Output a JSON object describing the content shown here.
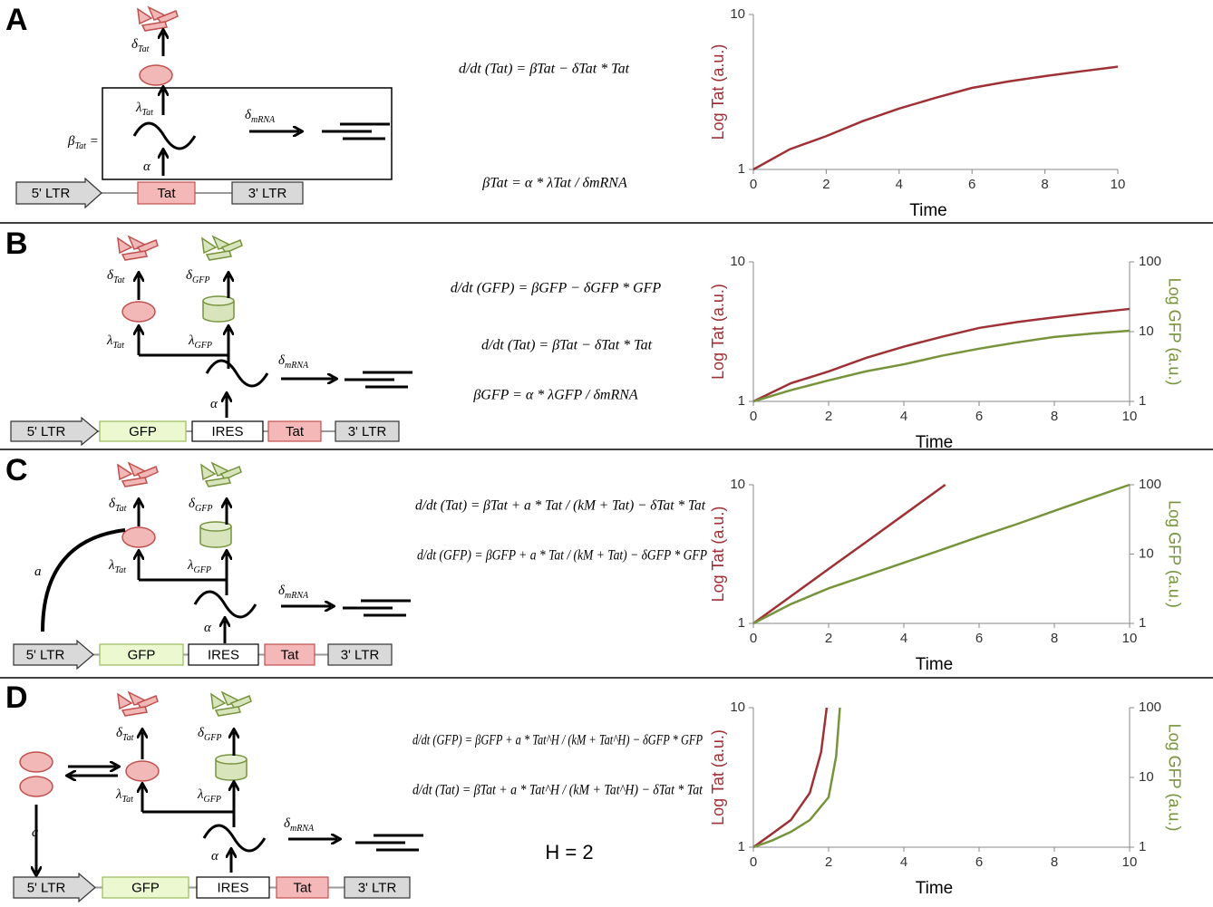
{
  "panels": [
    {
      "label": "A",
      "genes": [
        "5' LTR",
        "Tat",
        "3' LTR"
      ],
      "rates": [
        {
          "sym": "δ",
          "sub": "Tat"
        },
        {
          "sym": "λ",
          "sub": "Tat"
        },
        {
          "sym": "β",
          "sub": "Tat",
          "after": " ="
        },
        {
          "sym": "α"
        },
        {
          "sym": "δ",
          "sub": "mRNA"
        }
      ],
      "equations": [
        "d/dt (Tat) = βTat − δTat * Tat",
        "βTat = α * λTat / δmRNA"
      ],
      "chart": {
        "type": "line",
        "x": [
          0,
          1,
          2,
          3,
          4,
          5,
          6,
          7,
          8,
          9,
          10
        ],
        "xlim": [
          0,
          10
        ],
        "xticks": [
          0,
          2,
          4,
          6,
          8,
          10
        ],
        "xlabel": "Time",
        "ylabel": "Log Tat (a.u.)",
        "log_y": true,
        "ylim": [
          1,
          10
        ],
        "yticks": [
          1,
          10
        ],
        "series": [
          {
            "color": "#9e3136",
            "values": [
              1,
              1.35,
              1.64,
              2.05,
              2.47,
              2.9,
              3.36,
              3.7,
              4.0,
              4.3,
              4.6
            ]
          }
        ]
      }
    },
    {
      "label": "B",
      "genes": [
        "5' LTR",
        "GFP",
        "IRES",
        "Tat",
        "3' LTR"
      ],
      "rates": [
        {
          "sym": "δ",
          "sub": "Tat"
        },
        {
          "sym": "δ",
          "sub": "GFP"
        },
        {
          "sym": "λ",
          "sub": "Tat"
        },
        {
          "sym": "λ",
          "sub": "GFP"
        },
        {
          "sym": "α"
        },
        {
          "sym": "δ",
          "sub": "mRNA"
        }
      ],
      "equations": [
        "d/dt (GFP) = βGFP − δGFP * GFP",
        "d/dt (Tat) = βTat − δTat * Tat",
        "βGFP = α * λGFP / δmRNA"
      ],
      "chart": {
        "type": "line",
        "x": [
          0,
          1,
          2,
          3,
          4,
          5,
          6,
          7,
          8,
          9,
          10
        ],
        "xlim": [
          0,
          10
        ],
        "xticks": [
          0,
          2,
          4,
          6,
          8,
          10
        ],
        "xlabel": "Time",
        "ylabel": "Log Tat (a.u.)",
        "y2label": "Log GFP (a.u.)",
        "log_y": true,
        "ylim": [
          1,
          10
        ],
        "yticks": [
          1,
          10
        ],
        "y2lim": [
          1,
          100
        ],
        "y2ticks": [
          1,
          10,
          100
        ],
        "series": [
          {
            "color": "#9e3136",
            "values": [
              1,
              1.35,
              1.64,
              2.05,
              2.47,
              2.9,
              3.36,
              3.7,
              4.0,
              4.3,
              4.6
            ]
          },
          {
            "color": "#77933c",
            "axis": "y2",
            "values": [
              1,
              1.45,
              2.0,
              2.7,
              3.4,
              4.5,
              5.7,
              7.0,
              8.4,
              9.4,
              10.3
            ]
          }
        ]
      }
    },
    {
      "label": "C",
      "genes": [
        "5' LTR",
        "GFP",
        "IRES",
        "Tat",
        "3' LTR"
      ],
      "rates": [
        {
          "sym": "δ",
          "sub": "Tat"
        },
        {
          "sym": "δ",
          "sub": "GFP"
        },
        {
          "sym": "λ",
          "sub": "Tat"
        },
        {
          "sym": "λ",
          "sub": "GFP"
        },
        {
          "sym": "α"
        },
        {
          "sym": "δ",
          "sub": "mRNA"
        },
        {
          "sym": "a"
        }
      ],
      "equations": [
        "d/dt (Tat) = βTat + a * Tat / (kM + Tat) − δTat * Tat",
        "d/dt (GFP) = βGFP + a * Tat / (kM + Tat) − δGFP * GFP"
      ],
      "chart": {
        "type": "line",
        "xlim": [
          0,
          10
        ],
        "xticks": [
          0,
          2,
          4,
          6,
          8,
          10
        ],
        "xlabel": "Time",
        "ylabel": "Log Tat (a.u.)",
        "y2label": "Log GFP (a.u.)",
        "log_y": true,
        "ylim": [
          1,
          10
        ],
        "yticks": [
          1,
          10
        ],
        "y2lim": [
          1,
          100
        ],
        "y2ticks": [
          1,
          10,
          100
        ],
        "series": [
          {
            "color": "#9e3136",
            "x": [
              0,
              1,
              2,
              3,
              4,
              5.1
            ],
            "values": [
              1,
              1.57,
              2.47,
              3.87,
              6.08,
              10
            ]
          },
          {
            "color": "#77933c",
            "axis": "y2",
            "x": [
              0,
              1,
              2,
              3,
              4,
              5,
              6,
              7,
              8,
              9,
              10
            ],
            "values": [
              1,
              1.9,
              3.2,
              4.9,
              7.5,
              11.5,
              17.8,
              27,
              42,
              65,
              100
            ]
          }
        ]
      }
    },
    {
      "label": "D",
      "genes": [
        "5' LTR",
        "GFP",
        "IRES",
        "Tat",
        "3' LTR"
      ],
      "rates": [
        {
          "sym": "δ",
          "sub": "Tat"
        },
        {
          "sym": "δ",
          "sub": "GFP"
        },
        {
          "sym": "λ",
          "sub": "Tat"
        },
        {
          "sym": "λ",
          "sub": "GFP"
        },
        {
          "sym": "α"
        },
        {
          "sym": "δ",
          "sub": "mRNA"
        },
        {
          "sym": "a"
        }
      ],
      "equations": [
        "d/dt (GFP) = βGFP + a * Tat^H / (kM + Tat^H) − δGFP * GFP",
        "d/dt (Tat) = βTat + a * Tat^H / (kM + Tat^H) − δTat * Tat"
      ],
      "note": "H = 2",
      "chart": {
        "type": "line",
        "xlim": [
          0,
          10
        ],
        "xticks": [
          0,
          2,
          4,
          6,
          8,
          10
        ],
        "xlabel": "Time",
        "ylabel": "Log Tat (a.u.)",
        "y2label": "Log GFP (a.u.)",
        "log_y": true,
        "ylim": [
          1,
          10
        ],
        "yticks": [
          1,
          10
        ],
        "y2lim": [
          1,
          100
        ],
        "y2ticks": [
          1,
          10,
          100
        ],
        "series": [
          {
            "color": "#9e3136",
            "x": [
              0,
              0.5,
              1,
              1.5,
              1.8,
              1.95
            ],
            "values": [
              1,
              1.25,
              1.57,
              2.45,
              4.8,
              10
            ]
          },
          {
            "color": "#77933c",
            "axis": "y2",
            "x": [
              0,
              0.5,
              1,
              1.5,
              2,
              2.2,
              2.3
            ],
            "values": [
              1,
              1.25,
              1.66,
              2.45,
              5.2,
              20,
              100
            ]
          }
        ]
      }
    }
  ]
}
